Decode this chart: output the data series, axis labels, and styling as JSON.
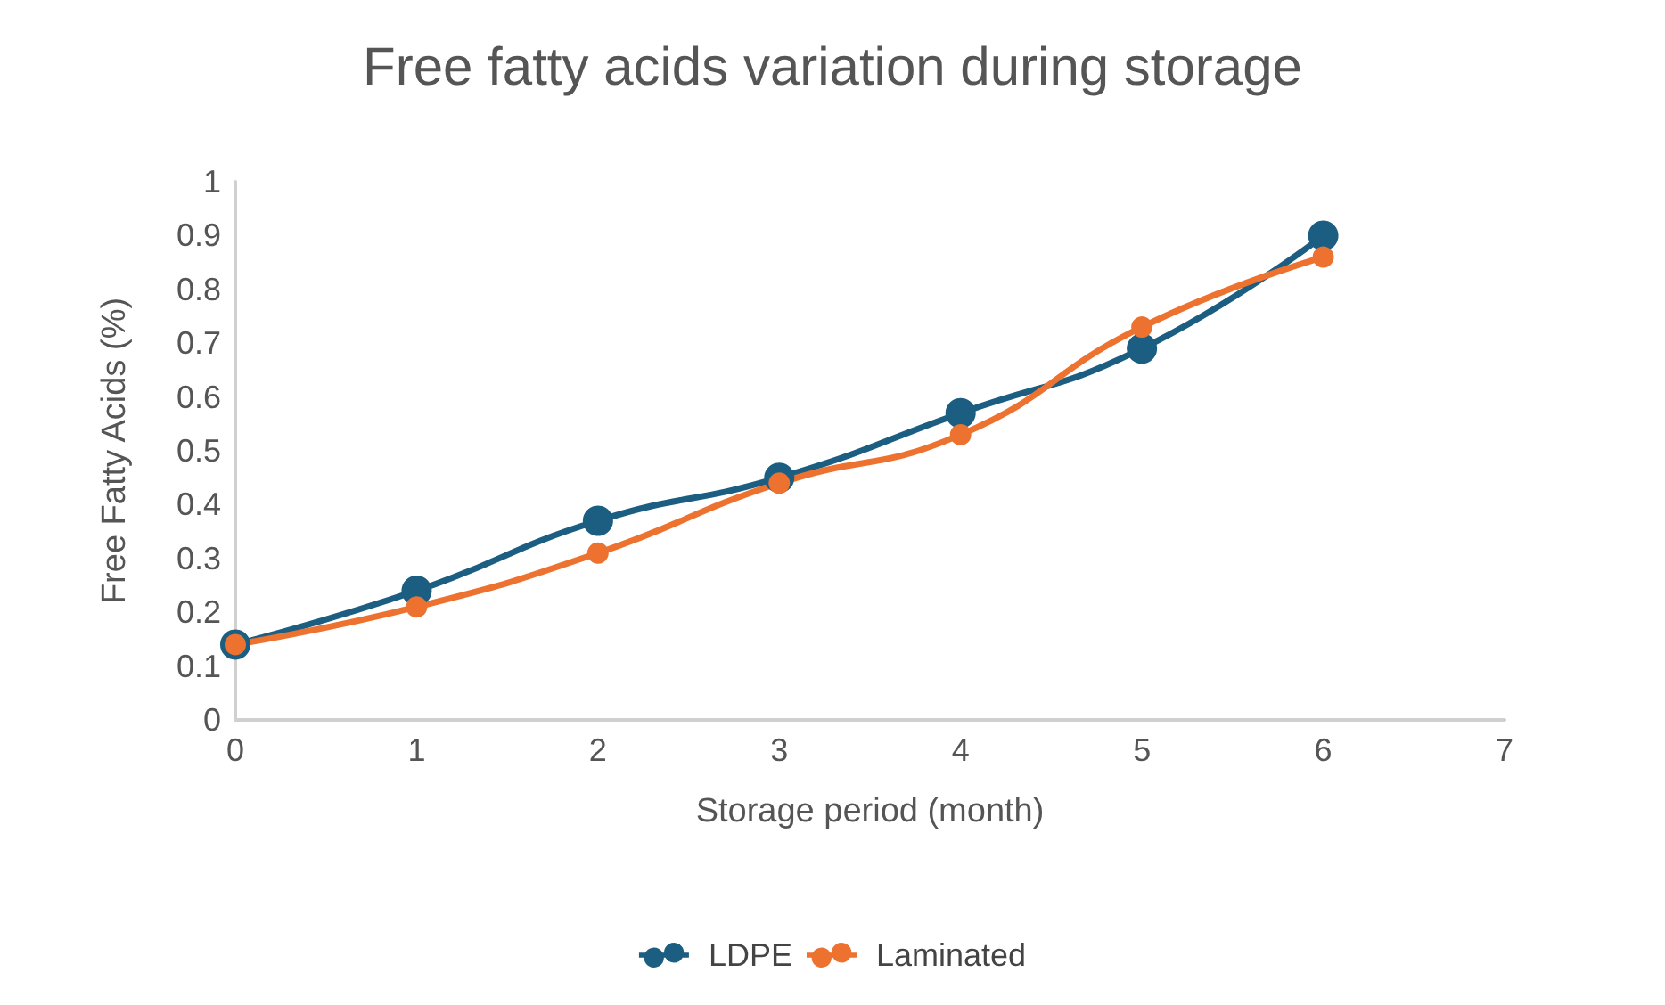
{
  "chart_data": {
    "type": "line",
    "title": "Free fatty acids variation during storage",
    "xlabel": "Storage period (month)",
    "ylabel": "Free Fatty Acids (%)",
    "x": [
      0,
      1,
      2,
      3,
      4,
      5,
      6
    ],
    "series": [
      {
        "name": "LDPE",
        "color": "#1b5e82",
        "values": [
          0.14,
          0.24,
          0.37,
          0.45,
          0.57,
          0.69,
          0.9
        ]
      },
      {
        "name": "Laminated",
        "color": "#ed7230",
        "values": [
          0.14,
          0.21,
          0.31,
          0.44,
          0.53,
          0.73,
          0.86
        ]
      }
    ],
    "xlim": [
      0,
      7
    ],
    "xticks": [
      0,
      1,
      2,
      3,
      4,
      5,
      6,
      7
    ],
    "ylim": [
      0,
      1
    ],
    "yticks": [
      0,
      0.1,
      0.2,
      0.3,
      0.4,
      0.5,
      0.6,
      0.7,
      0.8,
      0.9,
      1
    ],
    "grid": false,
    "legend": "bottom",
    "marker": "circle"
  }
}
